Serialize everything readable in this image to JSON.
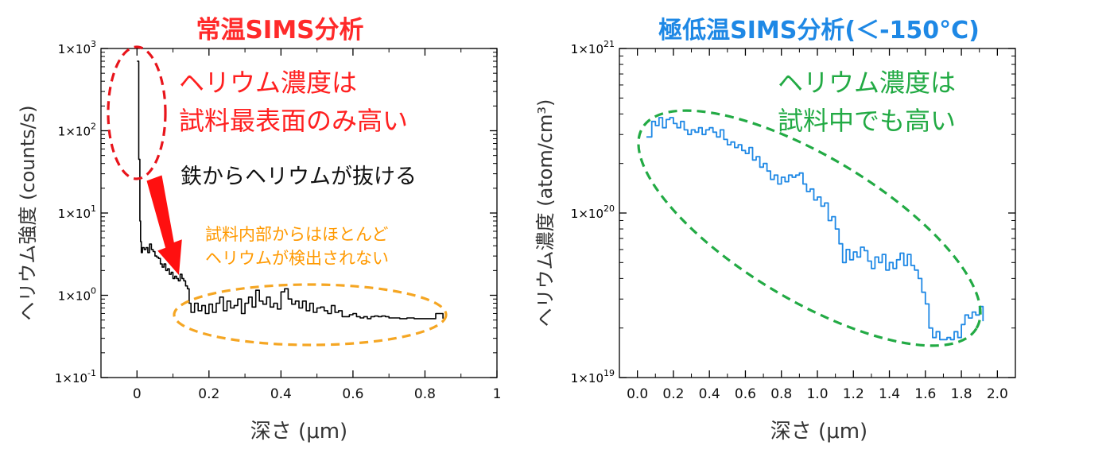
{
  "chart_data": [
    {
      "type": "line",
      "title": "常温SIMS分析",
      "xlabel": "深さ (μm)",
      "ylabel": "ヘリウム強度 (counts/s)",
      "ytype": "log",
      "xlim": [
        -0.1,
        1.0
      ],
      "ylim": [
        0.1,
        1000
      ],
      "xticks": [
        0,
        0.2,
        0.4,
        0.6,
        0.8,
        1
      ],
      "xtick_labels": [
        "0",
        "0.2",
        "0.4",
        "0.6",
        "0.8",
        "1"
      ],
      "ytick_labels": [
        {
          "base": "1×10",
          "exp": "3"
        },
        {
          "base": "1×10",
          "exp": "2"
        },
        {
          "base": "1×10",
          "exp": "1"
        },
        {
          "base": "1×10",
          "exp": "0"
        },
        {
          "base": "1×10",
          "exp": "-1"
        }
      ],
      "grid": false,
      "series": [
        {
          "color": "#000000",
          "x": [
            0.0,
            0.0,
            0.005,
            0.008,
            0.01,
            0.012,
            0.015,
            0.02,
            0.025,
            0.03,
            0.035,
            0.04,
            0.045,
            0.05,
            0.055,
            0.06,
            0.065,
            0.07,
            0.075,
            0.08,
            0.085,
            0.09,
            0.095,
            0.1,
            0.105,
            0.11,
            0.115,
            0.12,
            0.125,
            0.13,
            0.135,
            0.14,
            0.145,
            0.15,
            0.16,
            0.17,
            0.18,
            0.19,
            0.2,
            0.21,
            0.22,
            0.23,
            0.24,
            0.25,
            0.26,
            0.27,
            0.28,
            0.29,
            0.3,
            0.31,
            0.32,
            0.33,
            0.34,
            0.35,
            0.36,
            0.37,
            0.38,
            0.39,
            0.4,
            0.41,
            0.42,
            0.43,
            0.44,
            0.45,
            0.46,
            0.47,
            0.48,
            0.49,
            0.5,
            0.51,
            0.52,
            0.53,
            0.54,
            0.55,
            0.56,
            0.57,
            0.58,
            0.59,
            0.6,
            0.61,
            0.62,
            0.63,
            0.64,
            0.65,
            0.66,
            0.67,
            0.68,
            0.69,
            0.7,
            0.71,
            0.72,
            0.73,
            0.74,
            0.75,
            0.76,
            0.77,
            0.78,
            0.79,
            0.8,
            0.81,
            0.82,
            0.83,
            0.84,
            0.85
          ],
          "y": [
            700,
            700,
            45,
            8,
            4.5,
            3.3,
            3.8,
            3.6,
            3.8,
            3.3,
            4.2,
            3.6,
            3.4,
            3.0,
            2.9,
            2.8,
            2.4,
            2.2,
            2.4,
            2.0,
            2.1,
            1.8,
            1.9,
            1.6,
            1.7,
            1.6,
            1.5,
            1.8,
            1.6,
            1.5,
            1.3,
            1.2,
            0.8,
            0.62,
            0.8,
            0.65,
            0.75,
            0.6,
            0.78,
            0.62,
            0.8,
            0.95,
            0.65,
            0.85,
            0.7,
            0.75,
            0.9,
            0.6,
            0.8,
            0.95,
            0.72,
            1.15,
            0.85,
            0.78,
            0.95,
            0.72,
            0.8,
            0.68,
            1.1,
            1.2,
            0.9,
            0.78,
            0.85,
            0.7,
            0.85,
            0.65,
            0.8,
            0.62,
            0.7,
            0.72,
            0.65,
            0.6,
            0.75,
            0.62,
            0.65,
            0.55,
            0.55,
            0.58,
            0.6,
            0.55,
            0.53,
            0.55,
            0.52,
            0.55,
            0.56,
            0.55,
            0.56,
            0.55,
            0.53,
            0.53,
            0.53,
            0.52,
            0.52,
            0.53,
            0.53,
            0.52,
            0.52,
            0.52,
            0.52,
            0.52,
            0.52,
            0.6,
            0.6,
            0.52
          ]
        }
      ],
      "annotations": [
        {
          "text": "ヘリウム濃度は",
          "color": "#ff2020"
        },
        {
          "text": "試料最表面のみ高い",
          "color": "#ff2020"
        },
        {
          "text": "鉄からヘリウムが抜ける",
          "color": "#000000"
        },
        {
          "text": "試料内部からはほとんど",
          "color": "#ff9900"
        },
        {
          "text": "ヘリウムが検出されない",
          "color": "#ff9900"
        }
      ]
    },
    {
      "type": "line",
      "title": "極低温SIMS分析(＜-150°C)",
      "xlabel": "深さ (μm)",
      "ylabel": "ヘリウム濃度 (atom/cm³)",
      "ytype": "log",
      "xlim": [
        -0.1,
        2.1
      ],
      "ylim": [
        1e+19,
        1e+21
      ],
      "xticks": [
        0,
        0.2,
        0.4,
        0.6,
        0.8,
        1.0,
        1.2,
        1.4,
        1.6,
        1.8,
        2.0
      ],
      "xtick_labels": [
        "0.0",
        "0.2",
        "0.4",
        "0.6",
        "0.8",
        "1.0",
        "1.2",
        "1.4",
        "1.6",
        "1.8",
        "2.0"
      ],
      "ytick_labels": [
        {
          "base": "1×10",
          "exp": "21"
        },
        {
          "base": "1×10",
          "exp": "20"
        },
        {
          "base": "1×10",
          "exp": "19"
        }
      ],
      "grid": false,
      "series": [
        {
          "color": "#1e88e5",
          "x": [
            0.05,
            0.08,
            0.1,
            0.12,
            0.14,
            0.16,
            0.18,
            0.2,
            0.22,
            0.24,
            0.26,
            0.28,
            0.3,
            0.32,
            0.34,
            0.36,
            0.38,
            0.4,
            0.42,
            0.44,
            0.46,
            0.48,
            0.5,
            0.52,
            0.54,
            0.56,
            0.58,
            0.6,
            0.62,
            0.64,
            0.66,
            0.68,
            0.7,
            0.72,
            0.74,
            0.76,
            0.78,
            0.8,
            0.82,
            0.84,
            0.86,
            0.88,
            0.9,
            0.92,
            0.94,
            0.96,
            0.98,
            1.0,
            1.02,
            1.04,
            1.06,
            1.08,
            1.1,
            1.12,
            1.14,
            1.16,
            1.18,
            1.2,
            1.22,
            1.24,
            1.26,
            1.28,
            1.3,
            1.32,
            1.34,
            1.36,
            1.38,
            1.4,
            1.42,
            1.44,
            1.46,
            1.48,
            1.5,
            1.52,
            1.54,
            1.56,
            1.58,
            1.6,
            1.62,
            1.64,
            1.66,
            1.68,
            1.7,
            1.72,
            1.74,
            1.76,
            1.78,
            1.8,
            1.82,
            1.84,
            1.86,
            1.88,
            1.9,
            1.92
          ],
          "y": [
            2.9e+20,
            3.6e+20,
            3.4e+20,
            3.8e+20,
            3.3e+20,
            3.7e+20,
            3.8e+20,
            3.5e+20,
            3.3e+20,
            3.6e+20,
            3.2e+20,
            3e+20,
            3.2e+20,
            3.1e+20,
            3.3e+20,
            3e+20,
            3.2e+20,
            3.3e+20,
            3.1e+20,
            2.9e+20,
            3.2e+20,
            2.8e+20,
            2.6e+20,
            2.7e+20,
            2.5e+20,
            2.6e+20,
            2.4e+20,
            2.3e+20,
            2.5e+20,
            2.1e+20,
            2.2e+20,
            1.9e+20,
            2e+20,
            1.8e+20,
            1.6e+20,
            1.7e+20,
            1.5e+20,
            1.65e+20,
            1.55e+20,
            1.7e+20,
            1.65e+20,
            1.7e+20,
            1.75e+20,
            1.5e+20,
            1.35e+20,
            1.4e+20,
            1.2e+20,
            1.25e+20,
            1.1e+20,
            1.15e+20,
            9e+19,
            9.5e+19,
            8e+19,
            6.5e+19,
            5e+19,
            6e+19,
            5.2e+19,
            5.8e+19,
            5.4e+19,
            6.2e+19,
            5.9e+19,
            5.1e+19,
            4.6e+19,
            5.4e+19,
            5e+19,
            5.6e+19,
            4.5e+19,
            5e+19,
            4.6e+19,
            5.2e+19,
            5.7e+19,
            4.8e+19,
            5.6e+19,
            4.8e+19,
            4.5e+19,
            4e+19,
            3.3e+19,
            2.8e+19,
            2e+19,
            1.75e+19,
            1.9e+19,
            1.7e+19,
            1.7e+19,
            1.75e+19,
            1.7e+19,
            1.9e+19,
            1.75e+19,
            2.1e+19,
            2.4e+19,
            2.3e+19,
            2.5e+19,
            2.4e+19,
            2.7e+19,
            2.2e+19
          ]
        }
      ],
      "annotations": [
        {
          "text": "ヘリウム濃度は",
          "color": "#22aa44"
        },
        {
          "text": "試料中でも高い",
          "color": "#22aa44"
        }
      ]
    }
  ]
}
